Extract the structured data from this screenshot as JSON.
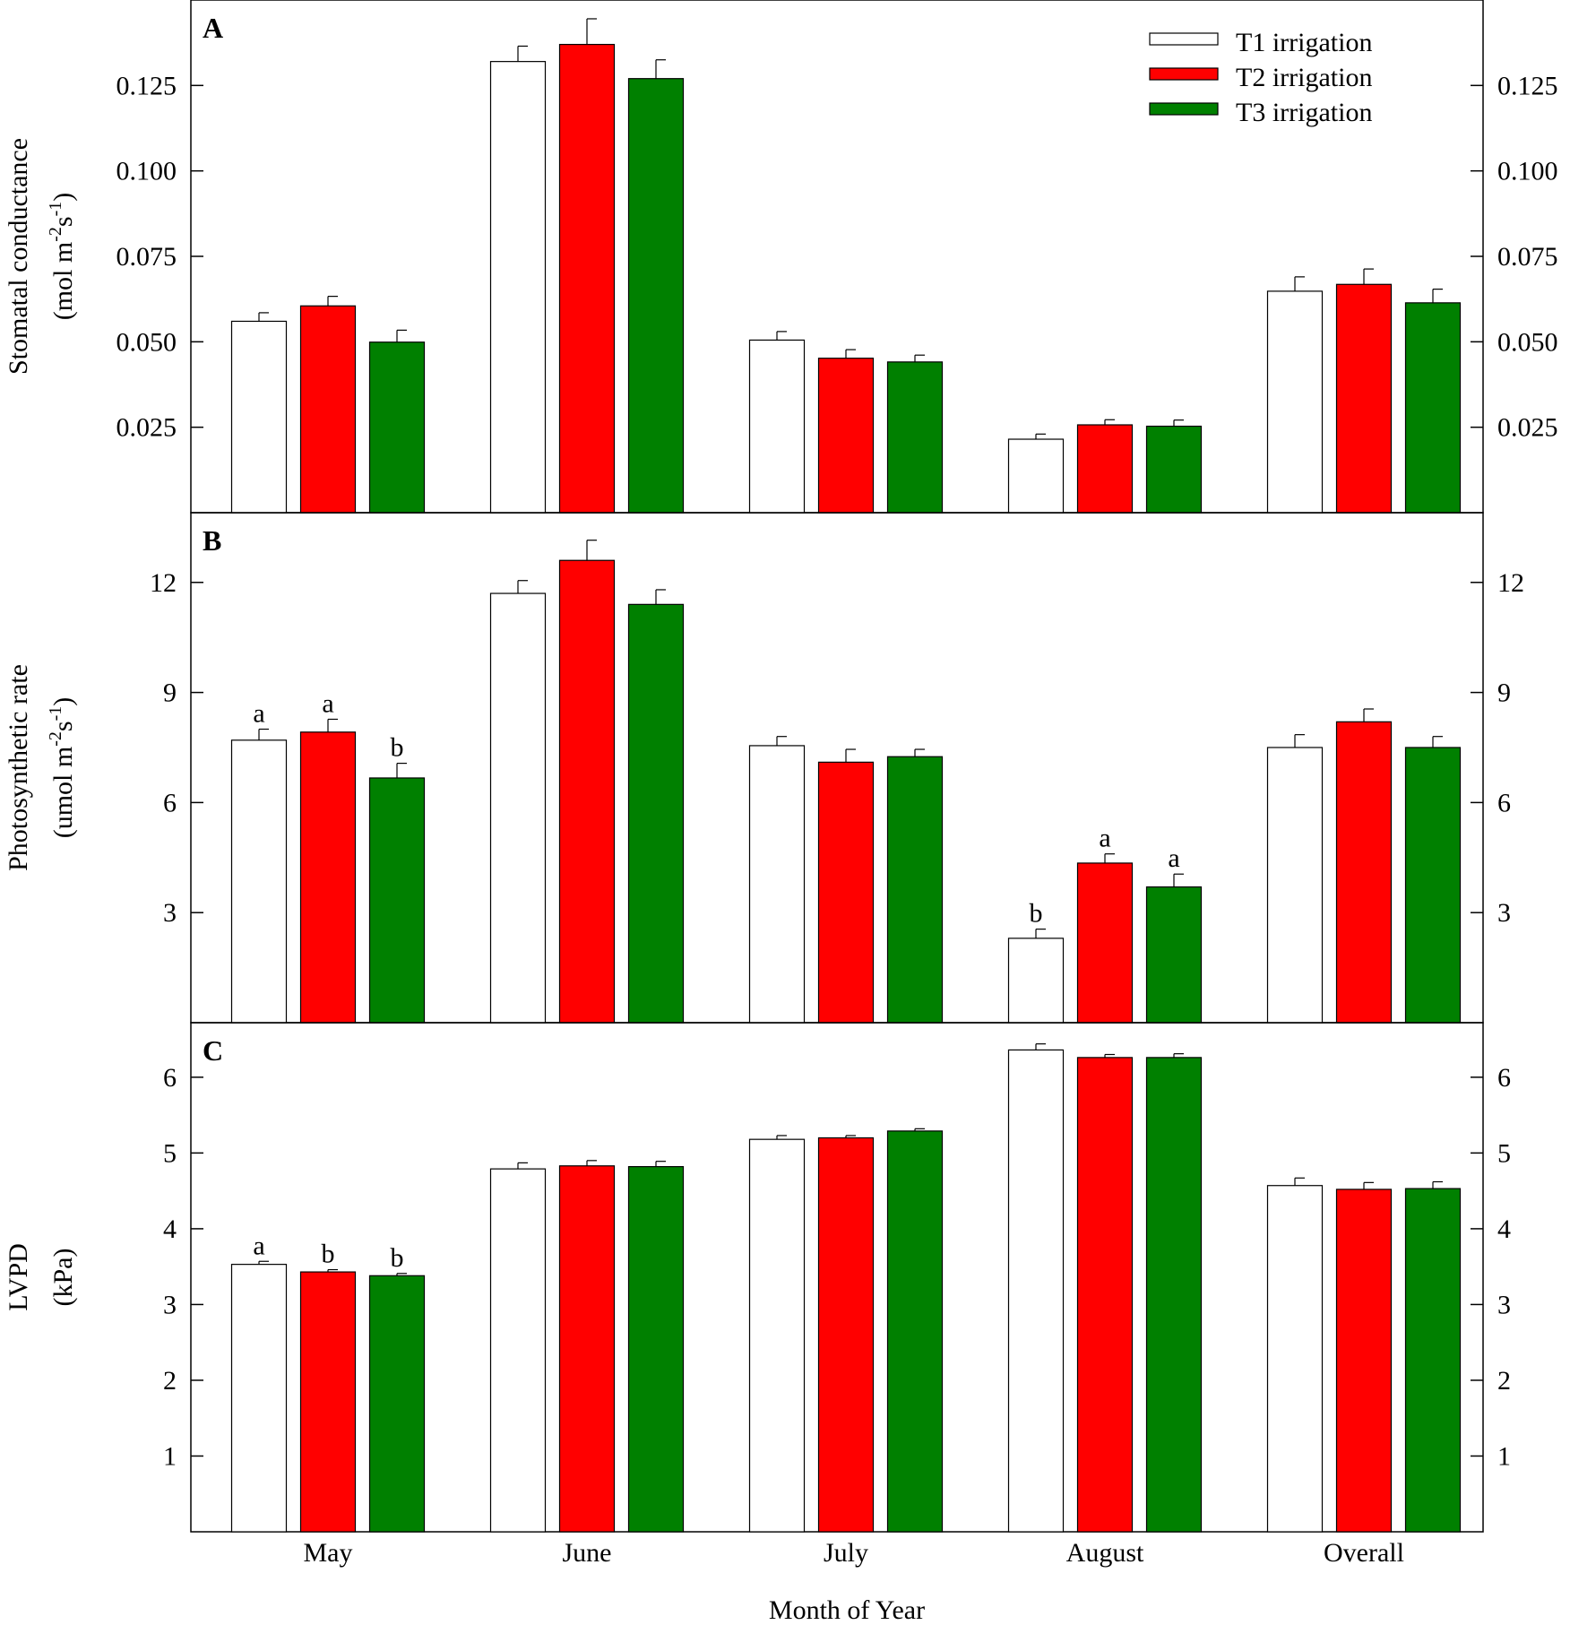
{
  "colors": {
    "T1": "#ffffff",
    "T2": "#ff0000",
    "T3": "#008000",
    "stroke": "#000000"
  },
  "chart_data": {
    "type": "bar",
    "xlabel": "Month of Year",
    "categories": [
      "May",
      "June",
      "July",
      "August",
      "Overall"
    ],
    "legend": {
      "position": "top-right",
      "entries": [
        "T1 irrigation",
        "T2 irrigation",
        "T3 irrigation"
      ]
    },
    "panels": [
      {
        "letter": "A",
        "ylabel_line1": "Stomatal conductance",
        "ylabel_line2_parts": [
          "(mol m",
          "-2",
          "s",
          "-1",
          ")"
        ],
        "ylim": [
          0,
          0.15
        ],
        "ticks": [
          0.025,
          0.05,
          0.075,
          0.1,
          0.125
        ],
        "tick_labels": [
          "0.025",
          "0.050",
          "0.075",
          "0.100",
          "0.125"
        ],
        "series": [
          {
            "name": "T1 irrigation",
            "values": [
              0.056,
              0.132,
              0.0505,
              0.0215,
              0.0648
            ],
            "errors": [
              0.0025,
              0.0045,
              0.0025,
              0.0015,
              0.0042
            ]
          },
          {
            "name": "T2 irrigation",
            "values": [
              0.0605,
              0.137,
              0.0452,
              0.0257,
              0.0668
            ],
            "errors": [
              0.0028,
              0.0075,
              0.0025,
              0.0015,
              0.0045
            ]
          },
          {
            "name": "T3 irrigation",
            "values": [
              0.0499,
              0.127,
              0.0441,
              0.0253,
              0.0614
            ],
            "errors": [
              0.0035,
              0.0055,
              0.002,
              0.0018,
              0.004
            ]
          }
        ],
        "letters": []
      },
      {
        "letter": "B",
        "ylabel_line1": "Photosynthetic rate",
        "ylabel_line2_parts": [
          "(umol m",
          "-2",
          "s",
          "-1",
          ")"
        ],
        "ylim": [
          0,
          13.9
        ],
        "ticks": [
          3,
          6,
          9,
          12
        ],
        "tick_labels": [
          "3",
          "6",
          "9",
          "12"
        ],
        "series": [
          {
            "name": "T1 irrigation",
            "values": [
              7.7,
              11.7,
              7.55,
              2.3,
              7.5
            ],
            "errors": [
              0.3,
              0.35,
              0.25,
              0.25,
              0.35
            ]
          },
          {
            "name": "T2 irrigation",
            "values": [
              7.92,
              12.6,
              7.1,
              4.35,
              8.2
            ],
            "errors": [
              0.35,
              0.55,
              0.35,
              0.25,
              0.35
            ]
          },
          {
            "name": "T3 irrigation",
            "values": [
              6.67,
              11.4,
              7.25,
              3.7,
              7.5
            ],
            "errors": [
              0.4,
              0.4,
              0.2,
              0.35,
              0.3
            ]
          }
        ],
        "letters": [
          {
            "category": "May",
            "labels": [
              "a",
              "a",
              "b"
            ]
          },
          {
            "category": "August",
            "labels": [
              "b",
              "a",
              "a"
            ]
          }
        ]
      },
      {
        "letter": "C",
        "ylabel_line1": "LVPD",
        "ylabel_line2_parts": [
          "(kPa)"
        ],
        "ylim": [
          0,
          6.72
        ],
        "ticks": [
          1,
          2,
          3,
          4,
          5,
          6
        ],
        "tick_labels": [
          "1",
          "2",
          "3",
          "4",
          "5",
          "6"
        ],
        "series": [
          {
            "name": "T1 irrigation",
            "values": [
              3.53,
              4.79,
              5.18,
              6.36,
              4.57
            ],
            "errors": [
              0.04,
              0.08,
              0.05,
              0.08,
              0.1
            ]
          },
          {
            "name": "T2 irrigation",
            "values": [
              3.43,
              4.83,
              5.2,
              6.26,
              4.52
            ],
            "errors": [
              0.03,
              0.07,
              0.03,
              0.04,
              0.09
            ]
          },
          {
            "name": "T3 irrigation",
            "values": [
              3.38,
              4.82,
              5.29,
              6.26,
              4.53
            ],
            "errors": [
              0.03,
              0.07,
              0.03,
              0.05,
              0.09
            ]
          }
        ],
        "letters": [
          {
            "category": "May",
            "labels": [
              "a",
              "b",
              "b"
            ]
          }
        ]
      }
    ]
  }
}
